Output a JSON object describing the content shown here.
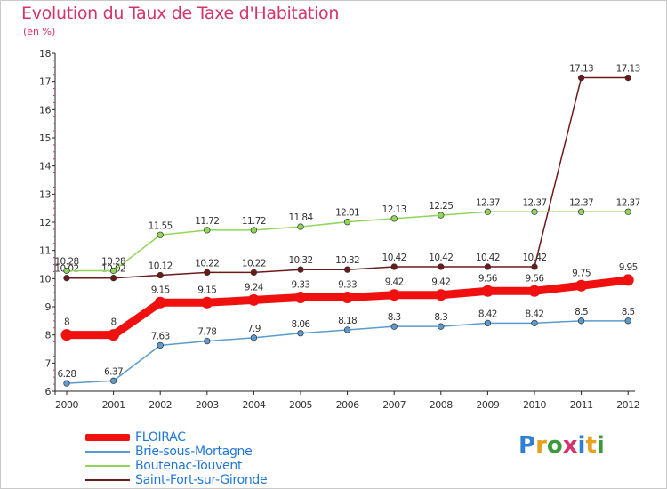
{
  "title": "Evolution du Taux de Taxe d'Habitation",
  "subtitle": "(en %)",
  "logo": {
    "text": "Proxiti",
    "letters": [
      "P",
      "r",
      "o",
      "x",
      "i",
      "t",
      "i"
    ],
    "colors": [
      "#2f7fd3",
      "#e8a020",
      "#3a9a3a",
      "#d6336c",
      "#2f7fd3",
      "#e8a020",
      "#3a9a3a"
    ]
  },
  "chart_data": {
    "type": "line",
    "title": "Evolution du Taux de Taxe d'Habitation",
    "ylabel": "(en %)",
    "xlabel": "",
    "x": [
      "2000",
      "2001",
      "2002",
      "2003",
      "2004",
      "2005",
      "2006",
      "2007",
      "2008",
      "2009",
      "2010",
      "2011",
      "2012"
    ],
    "ylim": [
      6,
      18
    ],
    "yticks": [
      "6",
      "7",
      "8",
      "9",
      "10",
      "11",
      "12",
      "13",
      "14",
      "15",
      "16",
      "17",
      "18"
    ],
    "grid": false,
    "legend_position": "bottom-left",
    "series": [
      {
        "name": "Saint-Fort-sur-Gironde",
        "color": "#6b1a1a",
        "thick": false,
        "values": [
          10.02,
          10.02,
          10.12,
          10.22,
          10.22,
          10.32,
          10.32,
          10.42,
          10.42,
          10.42,
          10.42,
          17.13,
          17.13
        ],
        "labels": [
          "10.02",
          "10.02",
          "10.12",
          "10.22",
          "10.22",
          "10.32",
          "10.32",
          "10.42",
          "10.42",
          "10.42",
          "10.42",
          "17.13",
          "17.13"
        ]
      },
      {
        "name": "Boutenac-Touvent",
        "color": "#8fd65a",
        "thick": false,
        "values": [
          10.28,
          10.28,
          11.55,
          11.72,
          11.72,
          11.84,
          12.01,
          12.13,
          12.25,
          12.37,
          12.37,
          12.37,
          12.37
        ],
        "labels": [
          "10.28",
          "10.28",
          "11.55",
          "11.72",
          "11.72",
          "11.84",
          "12.01",
          "12.13",
          "12.25",
          "12.37",
          "12.37",
          "12.37",
          "12.37"
        ]
      },
      {
        "name": "Brie-sous-Mortagne",
        "color": "#5b9bd0",
        "thick": false,
        "values": [
          6.28,
          6.37,
          7.63,
          7.78,
          7.9,
          8.06,
          8.18,
          8.3,
          8.3,
          8.42,
          8.42,
          8.5,
          8.5
        ],
        "labels": [
          "6.28",
          "6.37",
          "7.63",
          "7.78",
          "7.9",
          "8.06",
          "8.18",
          "8.3",
          "8.3",
          "8.42",
          "8.42",
          "8.5",
          "8.5"
        ]
      },
      {
        "name": "FLOIRAC",
        "color": "#f01010",
        "thick": true,
        "values": [
          8,
          8,
          9.15,
          9.15,
          9.24,
          9.33,
          9.33,
          9.42,
          9.42,
          9.56,
          9.56,
          9.75,
          9.95
        ],
        "labels": [
          "8",
          "8",
          "9.15",
          "9.15",
          "9.24",
          "9.33",
          "9.33",
          "9.42",
          "9.42",
          "9.56",
          "9.56",
          "9.75",
          "9.95"
        ]
      }
    ],
    "legend": [
      "FLOIRAC",
      "Brie-sous-Mortagne",
      "Boutenac-Touvent",
      "Saint-Fort-sur-Gironde"
    ]
  }
}
